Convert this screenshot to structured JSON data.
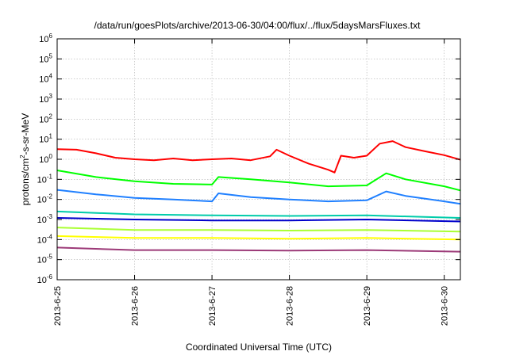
{
  "chart_data": {
    "type": "line",
    "title": "/data/run/goesPlots/archive/2013-06-30/04:00/flux/../flux/5daysMarsFluxes.txt",
    "xlabel": "Coordinated Universal Time (UTC)",
    "ylabel_main": "protons/cm",
    "ylabel_sup": "2",
    "ylabel_rest": "-s-sr-MeV",
    "y_scale": "log",
    "ylim": [
      1e-06,
      1000000.0
    ],
    "y_ticks": [
      {
        "exp": -6,
        "base": "10",
        "sup": "-6"
      },
      {
        "exp": -5,
        "base": "10",
        "sup": "-5"
      },
      {
        "exp": -4,
        "base": "10",
        "sup": "-4"
      },
      {
        "exp": -3,
        "base": "10",
        "sup": "-3"
      },
      {
        "exp": -2,
        "base": "10",
        "sup": "-2"
      },
      {
        "exp": -1,
        "base": "10",
        "sup": "-1"
      },
      {
        "exp": 0,
        "base": "10",
        "sup": "0"
      },
      {
        "exp": 1,
        "base": "10",
        "sup": "1"
      },
      {
        "exp": 2,
        "base": "10",
        "sup": "2"
      },
      {
        "exp": 3,
        "base": "10",
        "sup": "3"
      },
      {
        "exp": 4,
        "base": "10",
        "sup": "4"
      },
      {
        "exp": 5,
        "base": "10",
        "sup": "5"
      },
      {
        "exp": 6,
        "base": "10",
        "sup": "6"
      }
    ],
    "xlim": [
      "2013-06-25",
      "2013-06-30 05:00"
    ],
    "x_ticks": [
      "2013-6-25",
      "2013-6-26",
      "2013-6-27",
      "2013-6-28",
      "2013-6-29",
      "2013-6-30"
    ],
    "grid": true,
    "legend": "none",
    "series": [
      {
        "color": "#ff0000",
        "points": [
          [
            "2013-06-25 00:00",
            3.2
          ],
          [
            "2013-06-25 06:00",
            3.0
          ],
          [
            "2013-06-25 12:00",
            2.0
          ],
          [
            "2013-06-25 18:00",
            1.2
          ],
          [
            "2013-06-26 00:00",
            1.0
          ],
          [
            "2013-06-26 06:00",
            0.9
          ],
          [
            "2013-06-26 12:00",
            1.1
          ],
          [
            "2013-06-26 18:00",
            0.9
          ],
          [
            "2013-06-27 00:00",
            1.0
          ],
          [
            "2013-06-27 06:00",
            1.1
          ],
          [
            "2013-06-27 12:00",
            0.9
          ],
          [
            "2013-06-27 18:00",
            1.4
          ],
          [
            "2013-06-27 20:00",
            3.0
          ],
          [
            "2013-06-28 00:00",
            1.5
          ],
          [
            "2013-06-28 06:00",
            0.6
          ],
          [
            "2013-06-28 12:00",
            0.3
          ],
          [
            "2013-06-28 14:00",
            0.22
          ],
          [
            "2013-06-28 16:00",
            1.5
          ],
          [
            "2013-06-28 20:00",
            1.2
          ],
          [
            "2013-06-29 00:00",
            1.5
          ],
          [
            "2013-06-29 04:00",
            6.0
          ],
          [
            "2013-06-29 08:00",
            8.0
          ],
          [
            "2013-06-29 12:00",
            4.0
          ],
          [
            "2013-06-29 18:00",
            2.5
          ],
          [
            "2013-06-30 00:00",
            1.6
          ],
          [
            "2013-06-30 05:00",
            0.95
          ]
        ]
      },
      {
        "color": "#00ff00",
        "points": [
          [
            "2013-06-25 00:00",
            0.28
          ],
          [
            "2013-06-25 12:00",
            0.13
          ],
          [
            "2013-06-26 00:00",
            0.08
          ],
          [
            "2013-06-26 12:00",
            0.06
          ],
          [
            "2013-06-27 00:00",
            0.055
          ],
          [
            "2013-06-27 02:00",
            0.13
          ],
          [
            "2013-06-27 12:00",
            0.1
          ],
          [
            "2013-06-28 00:00",
            0.07
          ],
          [
            "2013-06-28 12:00",
            0.045
          ],
          [
            "2013-06-29 00:00",
            0.05
          ],
          [
            "2013-06-29 06:00",
            0.2
          ],
          [
            "2013-06-29 12:00",
            0.1
          ],
          [
            "2013-06-30 00:00",
            0.045
          ],
          [
            "2013-06-30 05:00",
            0.028
          ]
        ]
      },
      {
        "color": "#2080ff",
        "points": [
          [
            "2013-06-25 00:00",
            0.03
          ],
          [
            "2013-06-25 12:00",
            0.018
          ],
          [
            "2013-06-26 00:00",
            0.012
          ],
          [
            "2013-06-26 12:00",
            0.01
          ],
          [
            "2013-06-27 00:00",
            0.008
          ],
          [
            "2013-06-27 02:00",
            0.02
          ],
          [
            "2013-06-27 12:00",
            0.013
          ],
          [
            "2013-06-28 00:00",
            0.01
          ],
          [
            "2013-06-28 12:00",
            0.008
          ],
          [
            "2013-06-29 00:00",
            0.009
          ],
          [
            "2013-06-29 06:00",
            0.025
          ],
          [
            "2013-06-29 12:00",
            0.015
          ],
          [
            "2013-06-30 00:00",
            0.008
          ],
          [
            "2013-06-30 05:00",
            0.006
          ]
        ]
      },
      {
        "color": "#00ccaa",
        "points": [
          [
            "2013-06-25 00:00",
            0.0025
          ],
          [
            "2013-06-26 00:00",
            0.0018
          ],
          [
            "2013-06-27 00:00",
            0.0016
          ],
          [
            "2013-06-28 00:00",
            0.0015
          ],
          [
            "2013-06-29 00:00",
            0.0016
          ],
          [
            "2013-06-30 05:00",
            0.0012
          ]
        ]
      },
      {
        "color": "#0000cc",
        "points": [
          [
            "2013-06-25 00:00",
            0.0012
          ],
          [
            "2013-06-26 00:00",
            0.001
          ],
          [
            "2013-06-27 00:00",
            0.0009
          ],
          [
            "2013-06-28 00:00",
            0.0009
          ],
          [
            "2013-06-29 00:00",
            0.001
          ],
          [
            "2013-06-30 05:00",
            0.0008
          ]
        ]
      },
      {
        "color": "#aaff33",
        "points": [
          [
            "2013-06-25 00:00",
            0.0004
          ],
          [
            "2013-06-26 00:00",
            0.0003
          ],
          [
            "2013-06-27 00:00",
            0.0003
          ],
          [
            "2013-06-28 00:00",
            0.00028
          ],
          [
            "2013-06-29 00:00",
            0.0003
          ],
          [
            "2013-06-30 05:00",
            0.00025
          ]
        ]
      },
      {
        "color": "#ffff00",
        "points": [
          [
            "2013-06-25 00:00",
            0.00015
          ],
          [
            "2013-06-26 00:00",
            0.00012
          ],
          [
            "2013-06-27 00:00",
            0.00012
          ],
          [
            "2013-06-28 00:00",
            0.00011
          ],
          [
            "2013-06-29 00:00",
            0.00012
          ],
          [
            "2013-06-30 05:00",
            0.0001
          ]
        ]
      },
      {
        "color": "#9c3a78",
        "points": [
          [
            "2013-06-25 00:00",
            4e-05
          ],
          [
            "2013-06-26 00:00",
            3e-05
          ],
          [
            "2013-06-27 00:00",
            3e-05
          ],
          [
            "2013-06-28 00:00",
            2.8e-05
          ],
          [
            "2013-06-29 00:00",
            3e-05
          ],
          [
            "2013-06-30 05:00",
            2.5e-05
          ]
        ]
      }
    ]
  }
}
